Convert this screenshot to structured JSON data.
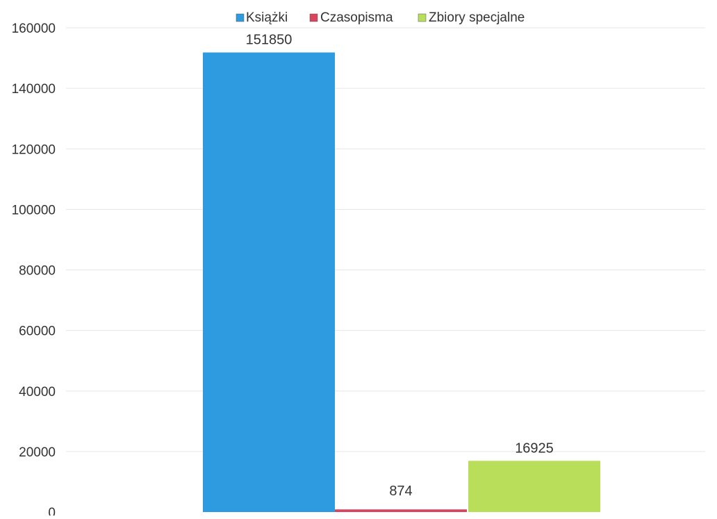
{
  "chart_data": {
    "type": "bar",
    "title": "",
    "xlabel": "",
    "ylabel": "",
    "ylim": [
      0,
      160000
    ],
    "yticks": [
      0,
      20000,
      40000,
      60000,
      80000,
      100000,
      120000,
      140000,
      160000
    ],
    "grid": true,
    "legend_position": "top",
    "series": [
      {
        "name": "Książki",
        "values": [
          151850
        ],
        "color": "#2e9be0"
      },
      {
        "name": "Czasopisma",
        "values": [
          874
        ],
        "color": "#d9455f"
      },
      {
        "name": "Zbiory specjalne",
        "values": [
          16925
        ],
        "color": "#b9de5a"
      }
    ],
    "data_labels": [
      "151850",
      "874",
      "16925"
    ]
  }
}
